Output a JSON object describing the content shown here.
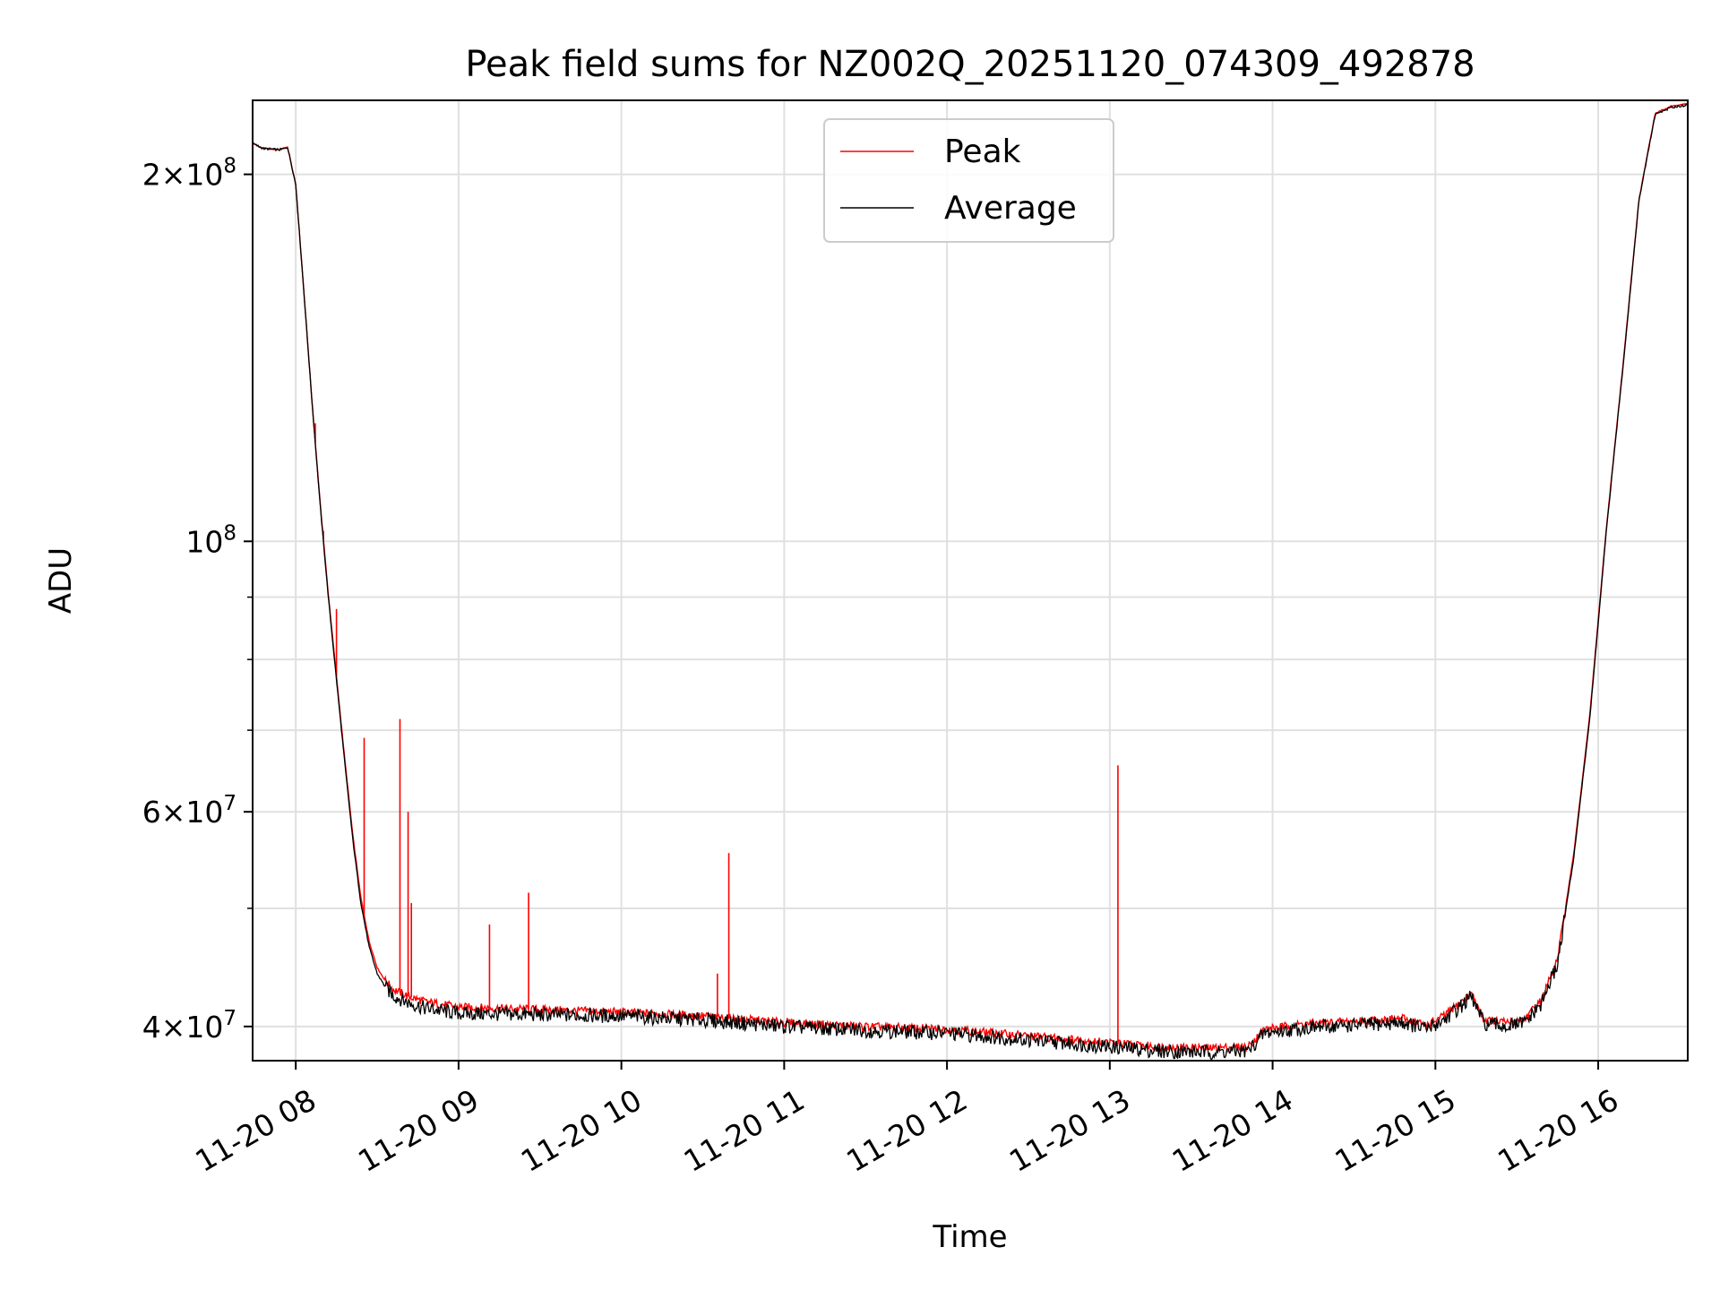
{
  "colors": {
    "peak": "#ff0000",
    "average": "#000000",
    "grid": "#e0e0e0",
    "background": "#ffffff"
  },
  "chart_data": {
    "type": "line",
    "title": "Peak field sums for NZ002Q_20251120_074309_492878",
    "xlabel": "Time",
    "ylabel": "ADU",
    "yscale": "log",
    "xlim": [
      7.735,
      16.55
    ],
    "ylim": [
      37500000,
      230000000
    ],
    "grid": true,
    "legend": {
      "placement": "top-center",
      "entries": [
        "Peak",
        "Average"
      ]
    },
    "x_ticks": [
      {
        "value": 8,
        "label": "11-20 08"
      },
      {
        "value": 9,
        "label": "11-20 09"
      },
      {
        "value": 10,
        "label": "11-20 10"
      },
      {
        "value": 11,
        "label": "11-20 11"
      },
      {
        "value": 12,
        "label": "11-20 12"
      },
      {
        "value": 13,
        "label": "11-20 13"
      },
      {
        "value": 14,
        "label": "11-20 14"
      },
      {
        "value": 15,
        "label": "11-20 15"
      },
      {
        "value": 16,
        "label": "11-20 16"
      }
    ],
    "y_ticks": [
      {
        "value": 40000000,
        "mantissa": "4",
        "exponent": "7"
      },
      {
        "value": 60000000,
        "mantissa": "6",
        "exponent": "7"
      },
      {
        "value": 100000000,
        "mantissa": "",
        "exponent": "8"
      },
      {
        "value": 200000000,
        "mantissa": "2",
        "exponent": "8"
      }
    ],
    "y_minor_ticks": [
      50000000,
      70000000,
      80000000,
      90000000
    ],
    "series": [
      {
        "name": "Average",
        "x": [
          7.735,
          7.8,
          7.9,
          7.95,
          8.0,
          8.05,
          8.1,
          8.15,
          8.2,
          8.25,
          8.3,
          8.35,
          8.4,
          8.45,
          8.5,
          8.55,
          8.6,
          8.7,
          8.8,
          9.0,
          9.5,
          10.0,
          10.5,
          11.0,
          11.5,
          12.0,
          12.5,
          13.0,
          13.3,
          13.6,
          13.85,
          13.95,
          14.2,
          14.5,
          14.8,
          14.95,
          15.05,
          15.15,
          15.22,
          15.3,
          15.45,
          15.55,
          15.65,
          15.75,
          15.85,
          15.95,
          16.05,
          16.15,
          16.25,
          16.35,
          16.45,
          16.55
        ],
        "y": [
          212000000,
          210000000,
          209500000,
          210500000,
          196000000,
          160000000,
          130000000,
          107000000,
          90000000,
          77000000,
          66000000,
          57000000,
          50500000,
          46500000,
          44200000,
          43100000,
          42400000,
          41800000,
          41400000,
          41000000,
          40900000,
          40800000,
          40500000,
          40000000,
          39700000,
          39500000,
          39000000,
          38500000,
          38200000,
          38100000,
          38200000,
          39500000,
          39900000,
          40100000,
          40300000,
          39800000,
          40500000,
          41500000,
          42300000,
          40200000,
          40000000,
          40300000,
          41700000,
          45000000,
          55000000,
          72000000,
          102000000,
          138000000,
          190000000,
          224000000,
          227000000,
          228000000
        ]
      },
      {
        "name": "Peak",
        "x": [
          7.735,
          7.8,
          7.9,
          7.95,
          8.0,
          8.05,
          8.1,
          8.15,
          8.2,
          8.25,
          8.3,
          8.35,
          8.4,
          8.45,
          8.5,
          8.55,
          8.6,
          8.7,
          8.8,
          9.0,
          9.5,
          10.0,
          10.5,
          11.0,
          11.5,
          12.0,
          12.5,
          13.0,
          13.3,
          13.6,
          13.85,
          13.95,
          14.2,
          14.5,
          14.8,
          14.95,
          15.05,
          15.15,
          15.22,
          15.3,
          15.45,
          15.55,
          15.65,
          15.75,
          15.85,
          15.95,
          16.05,
          16.15,
          16.25,
          16.35,
          16.45,
          16.55
        ],
        "y": [
          212000000,
          210000000,
          209500000,
          210500000,
          196000000,
          160000000,
          130000000,
          107500000,
          90500000,
          77500000,
          66500000,
          57500000,
          51000000,
          47000000,
          44700000,
          43600000,
          42900000,
          42300000,
          41900000,
          41500000,
          41300000,
          41100000,
          40800000,
          40300000,
          40000000,
          39800000,
          39300000,
          38800000,
          38500000,
          38400000,
          38500000,
          39800000,
          40200000,
          40400000,
          40600000,
          40100000,
          40800000,
          41800000,
          42600000,
          40500000,
          40300000,
          40600000,
          42000000,
          45400000,
          55400000,
          72500000,
          102500000,
          138500000,
          190500000,
          224500000,
          227500000,
          228500000
        ]
      }
    ],
    "spikes": {
      "x": [
        8.12,
        8.17,
        8.25,
        8.42,
        8.64,
        8.69,
        8.71,
        9.19,
        9.43,
        10.59,
        10.66,
        13.05
      ],
      "y": [
        125000000,
        102000000,
        88000000,
        69000000,
        71500000,
        60000000,
        50500000,
        48500000,
        51500000,
        44200000,
        55500000,
        65500000
      ]
    }
  }
}
